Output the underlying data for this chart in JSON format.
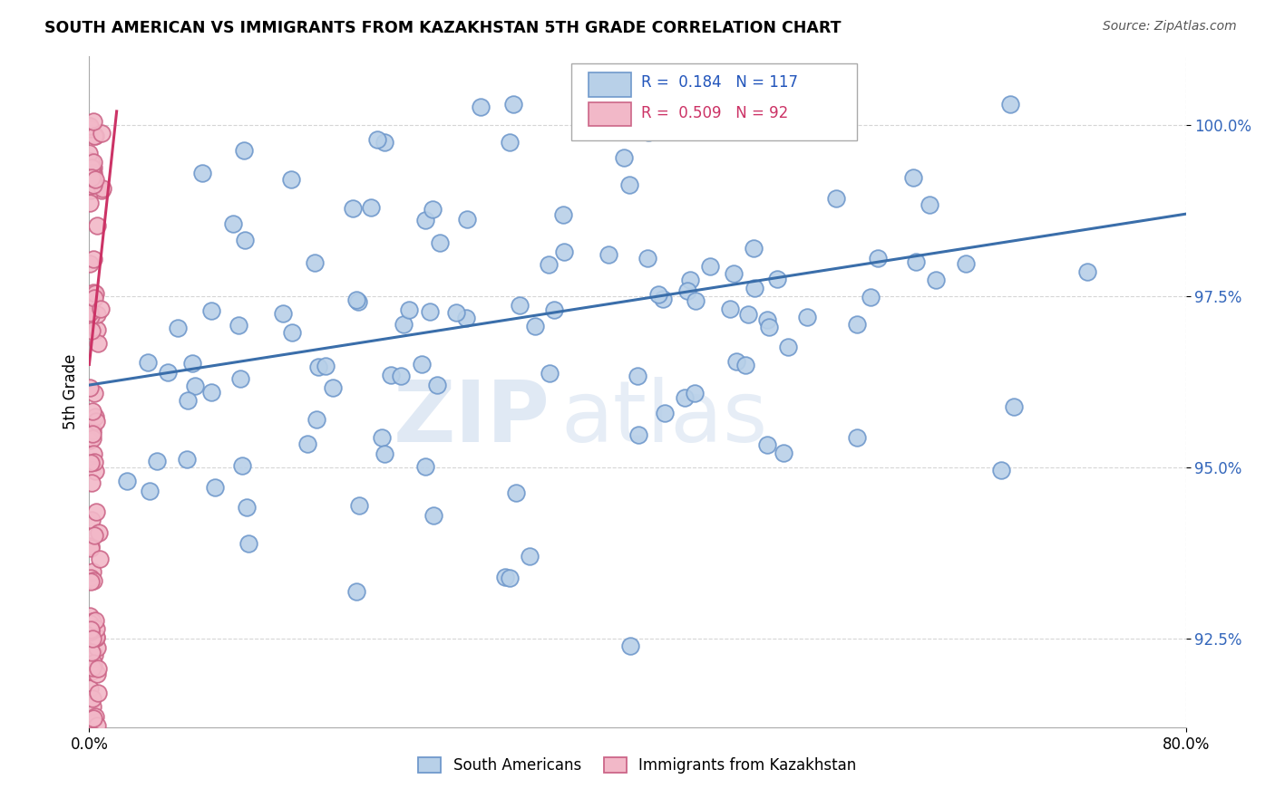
{
  "title": "SOUTH AMERICAN VS IMMIGRANTS FROM KAZAKHSTAN 5TH GRADE CORRELATION CHART",
  "source": "Source: ZipAtlas.com",
  "ylabel": "5th Grade",
  "xlim": [
    0.0,
    80.0
  ],
  "ylim": [
    91.2,
    101.0
  ],
  "yticks": [
    92.5,
    95.0,
    97.5,
    100.0
  ],
  "ytick_labels": [
    "92.5%",
    "95.0%",
    "97.5%",
    "100.0%"
  ],
  "xtick_labels": [
    "0.0%",
    "80.0%"
  ],
  "blue_R": 0.184,
  "blue_N": 117,
  "pink_R": 0.509,
  "pink_N": 92,
  "blue_color": "#b8d0e8",
  "blue_edge": "#7099cc",
  "pink_color": "#f2b8c8",
  "pink_edge": "#cc6688",
  "trend_blue": "#3a6eaa",
  "trend_pink": "#cc3366",
  "watermark_zip": "ZIP",
  "watermark_atlas": "atlas",
  "legend_label_blue": "South Americans",
  "legend_label_pink": "Immigrants from Kazakhstan",
  "blue_trend_x0": 0.0,
  "blue_trend_y0": 96.2,
  "blue_trend_x1": 80.0,
  "blue_trend_y1": 98.7,
  "pink_trend_x0": 0.0,
  "pink_trend_y0": 96.5,
  "pink_trend_x1": 2.0,
  "pink_trend_y1": 100.2
}
